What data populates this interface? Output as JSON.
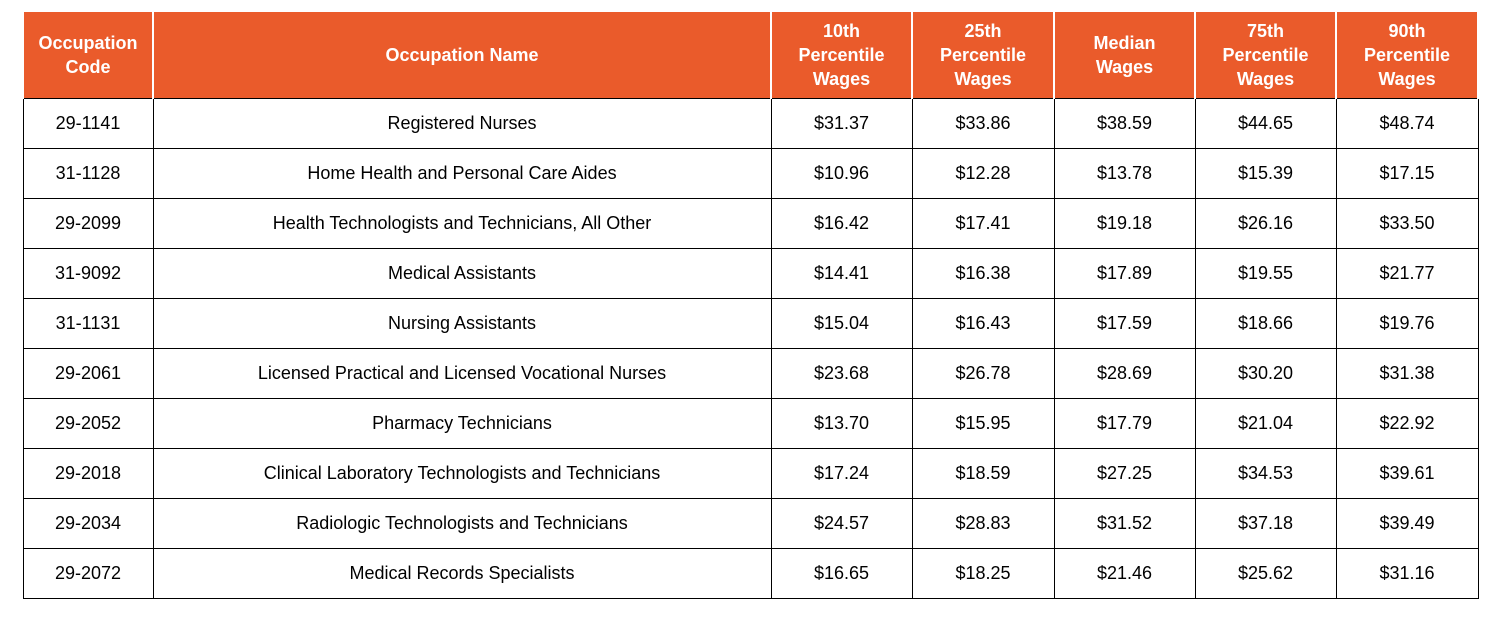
{
  "colors": {
    "header_bg": "#EA5B2B",
    "header_text": "#FFFFFF",
    "body_text": "#000000",
    "border": "#000000"
  },
  "chart_data": {
    "type": "table",
    "columns": [
      "Occupation Code",
      "Occupation Name",
      "10th Percentile Wages",
      "25th Percentile Wages",
      "Median Wages",
      "75th Percentile Wages",
      "90th Percentile Wages"
    ],
    "rows": [
      [
        "29-1141",
        "Registered Nurses",
        "$31.37",
        "$33.86",
        "$38.59",
        "$44.65",
        "$48.74"
      ],
      [
        "31-1128",
        "Home Health and Personal Care Aides",
        "$10.96",
        "$12.28",
        "$13.78",
        "$15.39",
        "$17.15"
      ],
      [
        "29-2099",
        "Health Technologists and Technicians, All Other",
        "$16.42",
        "$17.41",
        "$19.18",
        "$26.16",
        "$33.50"
      ],
      [
        "31-9092",
        "Medical Assistants",
        "$14.41",
        "$16.38",
        "$17.89",
        "$19.55",
        "$21.77"
      ],
      [
        "31-1131",
        "Nursing Assistants",
        "$15.04",
        "$16.43",
        "$17.59",
        "$18.66",
        "$19.76"
      ],
      [
        "29-2061",
        "Licensed Practical and Licensed Vocational Nurses",
        "$23.68",
        "$26.78",
        "$28.69",
        "$30.20",
        "$31.38"
      ],
      [
        "29-2052",
        "Pharmacy Technicians",
        "$13.70",
        "$15.95",
        "$17.79",
        "$21.04",
        "$22.92"
      ],
      [
        "29-2018",
        "Clinical Laboratory Technologists and Technicians",
        "$17.24",
        "$18.59",
        "$27.25",
        "$34.53",
        "$39.61"
      ],
      [
        "29-2034",
        "Radiologic Technologists and Technicians",
        "$24.57",
        "$28.83",
        "$31.52",
        "$37.18",
        "$39.49"
      ],
      [
        "29-2072",
        "Medical Records Specialists",
        "$16.65",
        "$18.25",
        "$21.46",
        "$25.62",
        "$31.16"
      ]
    ]
  }
}
